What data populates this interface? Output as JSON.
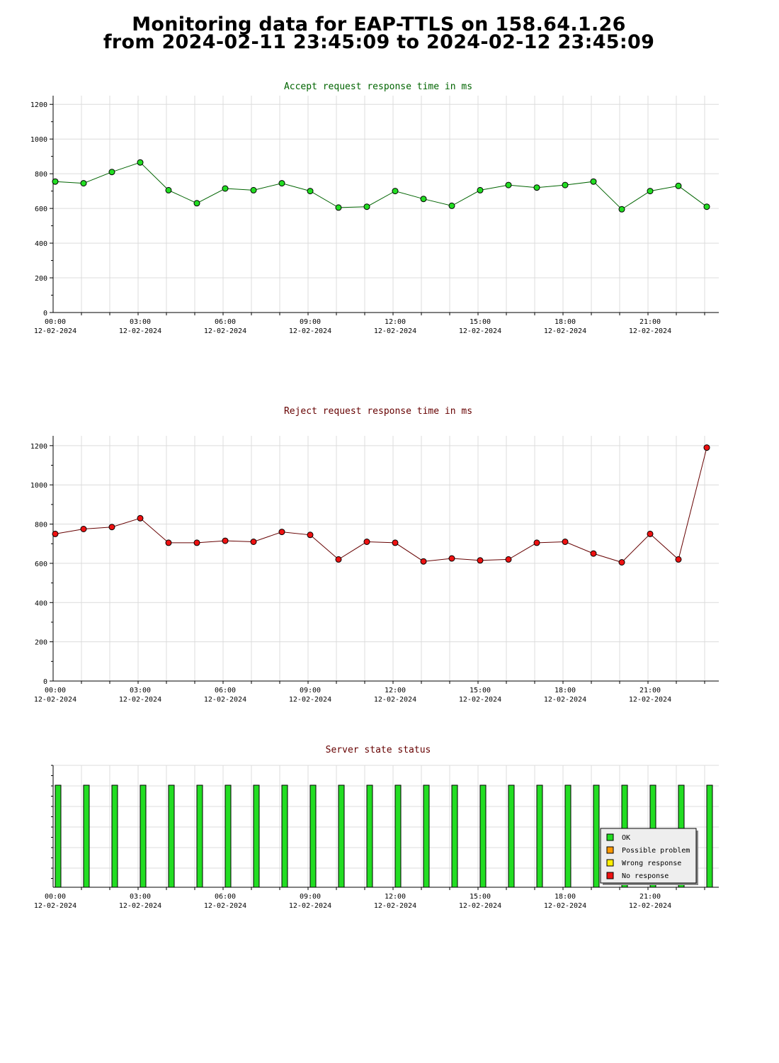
{
  "header": {
    "line1": "Monitoring data for EAP-TTLS on 158.64.1.26",
    "line2": "from 2024-02-11 23:45:09 to 2024-02-12 23:45:09"
  },
  "chart_data": [
    {
      "id": "accept",
      "type": "line",
      "title": "Accept request response time in ms",
      "title_color": "#006400",
      "marker_color": "#22dd22",
      "line_color": "#006400",
      "xlabel": "",
      "ylabel": "",
      "ylim": [
        0,
        1250
      ],
      "yticks": [
        0,
        200,
        400,
        600,
        800,
        1000,
        1200
      ],
      "x_hours": [
        0,
        1,
        2,
        3,
        4,
        5,
        6,
        7,
        8,
        9,
        10,
        11,
        12,
        13,
        14,
        15,
        16,
        17,
        18,
        19,
        20,
        21,
        22,
        23
      ],
      "values": [
        755,
        745,
        810,
        865,
        705,
        630,
        715,
        705,
        745,
        700,
        605,
        610,
        700,
        655,
        615,
        705,
        735,
        720,
        735,
        755,
        595,
        700,
        730,
        610
      ],
      "xticks": [
        {
          "time": "00:00",
          "date": "12-02-2024"
        },
        {
          "time": "03:00",
          "date": "12-02-2024"
        },
        {
          "time": "06:00",
          "date": "12-02-2024"
        },
        {
          "time": "09:00",
          "date": "12-02-2024"
        },
        {
          "time": "12:00",
          "date": "12-02-2024"
        },
        {
          "time": "15:00",
          "date": "12-02-2024"
        },
        {
          "time": "18:00",
          "date": "12-02-2024"
        },
        {
          "time": "21:00",
          "date": "12-02-2024"
        }
      ],
      "grid": true
    },
    {
      "id": "reject",
      "type": "line",
      "title": "Reject request response time in ms",
      "title_color": "#660000",
      "marker_color": "#ee1111",
      "line_color": "#660000",
      "xlabel": "",
      "ylabel": "",
      "ylim": [
        0,
        1250
      ],
      "yticks": [
        0,
        200,
        400,
        600,
        800,
        1000,
        1200
      ],
      "x_hours": [
        0,
        1,
        2,
        3,
        4,
        5,
        6,
        7,
        8,
        9,
        10,
        11,
        12,
        13,
        14,
        15,
        16,
        17,
        18,
        19,
        20,
        21,
        22,
        23
      ],
      "values": [
        750,
        775,
        785,
        830,
        705,
        705,
        715,
        710,
        760,
        745,
        620,
        710,
        705,
        610,
        625,
        615,
        620,
        705,
        710,
        650,
        605,
        750,
        620,
        1190
      ],
      "xticks": [
        {
          "time": "00:00",
          "date": "12-02-2024"
        },
        {
          "time": "03:00",
          "date": "12-02-2024"
        },
        {
          "time": "06:00",
          "date": "12-02-2024"
        },
        {
          "time": "09:00",
          "date": "12-02-2024"
        },
        {
          "time": "12:00",
          "date": "12-02-2024"
        },
        {
          "time": "15:00",
          "date": "12-02-2024"
        },
        {
          "time": "18:00",
          "date": "12-02-2024"
        },
        {
          "time": "21:00",
          "date": "12-02-2024"
        }
      ],
      "grid": true
    },
    {
      "id": "status",
      "type": "bar",
      "title": "Server state status",
      "title_color": "#660000",
      "x_hours": [
        0,
        1,
        2,
        3,
        4,
        5,
        6,
        7,
        8,
        9,
        10,
        11,
        12,
        13,
        14,
        15,
        16,
        17,
        18,
        19,
        20,
        21,
        22,
        23
      ],
      "states": [
        "OK",
        "OK",
        "OK",
        "OK",
        "OK",
        "OK",
        "OK",
        "OK",
        "OK",
        "OK",
        "OK",
        "OK",
        "OK",
        "OK",
        "OK",
        "OK",
        "OK",
        "OK",
        "OK",
        "OK",
        "OK",
        "OK",
        "OK",
        "OK"
      ],
      "legend": [
        {
          "label": "OK",
          "color": "#22dd22"
        },
        {
          "label": "Possible problem",
          "color": "#ff9900"
        },
        {
          "label": "Wrong response",
          "color": "#ffee00"
        },
        {
          "label": "No response",
          "color": "#ee1111"
        }
      ],
      "legend_position": "bottom-right",
      "xticks": [
        {
          "time": "00:00",
          "date": "12-02-2024"
        },
        {
          "time": "03:00",
          "date": "12-02-2024"
        },
        {
          "time": "06:00",
          "date": "12-02-2024"
        },
        {
          "time": "09:00",
          "date": "12-02-2024"
        },
        {
          "time": "12:00",
          "date": "12-02-2024"
        },
        {
          "time": "15:00",
          "date": "12-02-2024"
        },
        {
          "time": "18:00",
          "date": "12-02-2024"
        },
        {
          "time": "21:00",
          "date": "12-02-2024"
        }
      ],
      "grid": true
    }
  ]
}
